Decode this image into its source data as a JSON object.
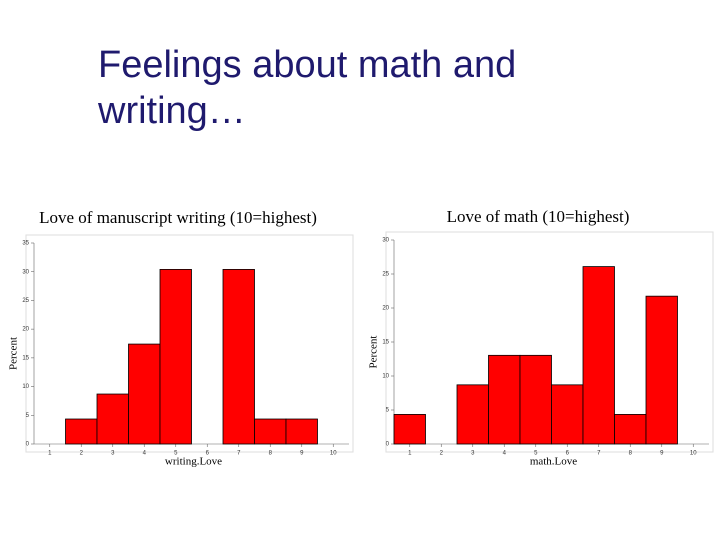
{
  "title": "Feelings about math and writing…",
  "chart_data": [
    {
      "type": "histogram",
      "title": "Love of manuscript writing (10=highest)",
      "x_label": "writing.Love",
      "y_label": "Percent",
      "bins": [
        1.5,
        2.5,
        3.5,
        4.5,
        5.5,
        6.5,
        7.5,
        8.5,
        9.5
      ],
      "values": [
        4.35,
        8.7,
        17.4,
        30.4,
        0,
        30.4,
        4.35,
        4.35
      ],
      "color": "#ff0000",
      "xlim": [
        0.5,
        10.5
      ],
      "xticks": [
        1,
        2,
        3,
        4,
        5,
        6,
        7,
        8,
        9,
        10
      ],
      "ylim": [
        0,
        35
      ],
      "yticks": [
        0,
        5,
        10,
        15,
        20,
        25,
        30,
        35
      ]
    },
    {
      "type": "histogram",
      "title": "Love of math (10=highest)",
      "x_label": "math.Love",
      "y_label": "Percent",
      "bins": [
        0.5,
        1.5,
        2.5,
        3.5,
        4.5,
        5.5,
        6.5,
        7.5,
        8.5,
        9.5
      ],
      "values": [
        4.35,
        0,
        8.7,
        13.04,
        13.04,
        8.7,
        26.09,
        4.35,
        21.74
      ],
      "color": "#ff0000",
      "xlim": [
        0.5,
        10.5
      ],
      "xticks": [
        1,
        2,
        3,
        4,
        5,
        6,
        7,
        8,
        9,
        10
      ],
      "ylim": [
        0,
        30
      ],
      "yticks": [
        0,
        5,
        10,
        15,
        20,
        25,
        30
      ]
    }
  ]
}
